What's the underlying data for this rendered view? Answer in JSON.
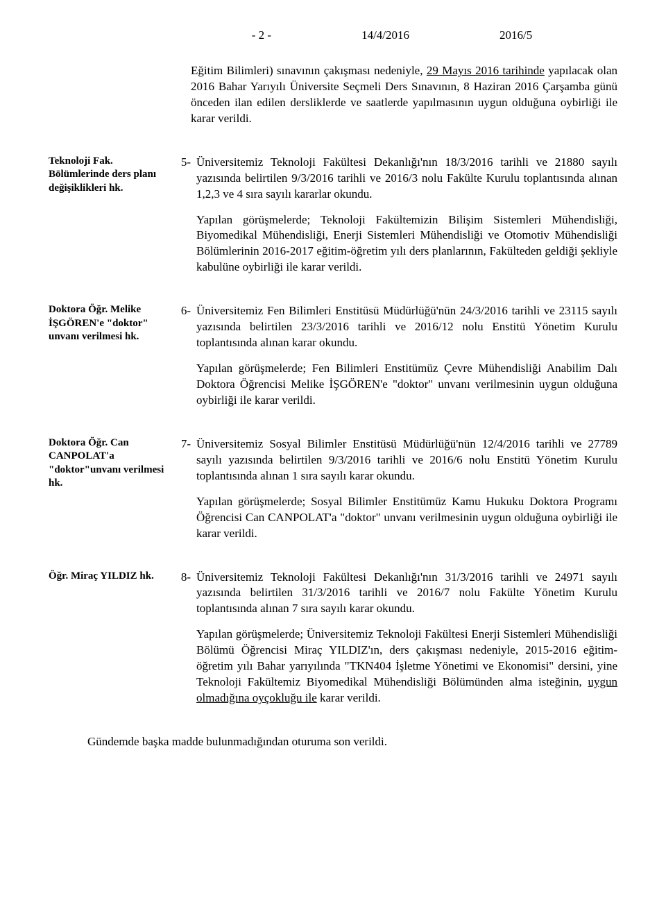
{
  "header": {
    "page": "- 2 -",
    "date": "14/4/2016",
    "ref": "2016/5"
  },
  "intro": {
    "p1_pre": "Eğitim Bilimleri) sınavının çakışması nedeniyle, ",
    "p1_u": "29 Mayıs 2016 tarihinde",
    "p1_post": " yapılacak olan 2016 Bahar Yarıyılı Üniversite Seçmeli Ders Sınavının, 8 Haziran 2016 Çarşamba günü önceden ilan edilen dersliklerde ve saatlerde yapılmasının uygun olduğuna oybirliği ile karar verildi."
  },
  "items": [
    {
      "side": "Teknoloji Fak. Bölümlerinde ders planı değişiklikleri hk.",
      "num": "5-",
      "p1": "Üniversitemiz Teknoloji Fakültesi Dekanlığı'nın 18/3/2016 tarihli ve 21880 sayılı yazısında belirtilen 9/3/2016 tarihli ve 2016/3 nolu Fakülte Kurulu toplantısında alınan 1,2,3 ve 4 sıra sayılı kararlar okundu.",
      "p2": "Yapılan görüşmelerde; Teknoloji Fakültemizin Bilişim Sistemleri Mühendisliği, Biyomedikal Mühendisliği, Enerji Sistemleri Mühendisliği ve Otomotiv Mühendisliği Bölümlerinin 2016-2017 eğitim-öğretim yılı ders planlarının, Fakülteden geldiği şekliyle kabulüne oybirliği ile karar verildi."
    },
    {
      "side": "Doktora Öğr. Melike İŞGÖREN'e \"doktor\" unvanı verilmesi hk.",
      "num": "6-",
      "p1": "Üniversitemiz Fen Bilimleri Enstitüsü Müdürlüğü'nün 24/3/2016 tarihli ve 23115 sayılı yazısında belirtilen 23/3/2016 tarihli ve 2016/12 nolu Enstitü Yönetim Kurulu toplantısında alınan karar okundu.",
      "p2": "Yapılan görüşmelerde; Fen Bilimleri Enstitümüz Çevre Mühendisliği Anabilim Dalı Doktora Öğrencisi Melike İŞGÖREN'e \"doktor\" unvanı verilmesinin uygun olduğuna oybirliği ile karar verildi."
    },
    {
      "side": "Doktora Öğr. Can CANPOLAT'a \"doktor\"unvanı verilmesi hk.",
      "num": "7-",
      "p1": "Üniversitemiz Sosyal Bilimler Enstitüsü Müdürlüğü'nün 12/4/2016 tarihli ve 27789 sayılı yazısında belirtilen 9/3/2016 tarihli ve 2016/6 nolu Enstitü Yönetim Kurulu toplantısında alınan 1 sıra sayılı karar okundu.",
      "p2": "Yapılan görüşmelerde; Sosyal Bilimler Enstitümüz Kamu Hukuku Doktora Programı Öğrencisi Can CANPOLAT'a \"doktor\" unvanı verilmesinin uygun olduğuna oybirliği ile karar verildi."
    },
    {
      "side": "Öğr. Miraç YILDIZ hk.",
      "num": "8-",
      "p1": "Üniversitemiz Teknoloji Fakültesi Dekanlığı'nın 31/3/2016 tarihli ve 24971 sayılı yazısında belirtilen 31/3/2016 tarihli ve 2016/7 nolu Fakülte Yönetim Kurulu toplantısında alınan 7 sıra sayılı karar okundu.",
      "p2_pre": "Yapılan görüşmelerde; Üniversitemiz Teknoloji Fakültesi Enerji Sistemleri Mühendisliği Bölümü Öğrencisi Miraç YILDIZ'ın, ders çakışması nedeniyle, 2015-2016 eğitim-öğretim yılı Bahar yarıyılında \"TKN404 İşletme Yönetimi ve Ekonomisi\" dersini, yine Teknoloji Fakültemiz Biyomedikal Mühendisliği Bölümünden alma isteğinin, ",
      "p2_u": "uygun olmadığına oyçokluğu ile",
      "p2_post": " karar verildi."
    }
  ],
  "footer": "Gündemde başka madde bulunmadığından oturuma son verildi."
}
